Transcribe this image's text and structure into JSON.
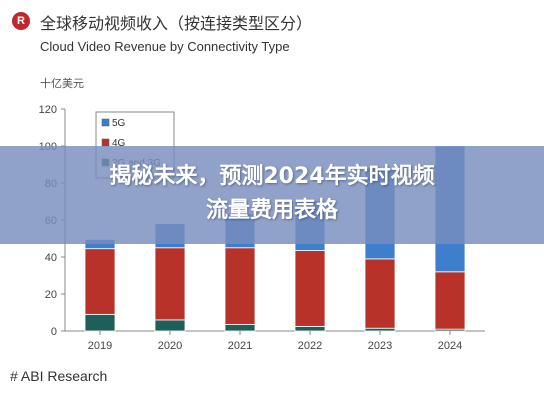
{
  "header": {
    "logo_letter": "R",
    "title_cn": "全球移动视频收入（按连接类型区分）",
    "title_en": "Cloud Video Revenue by Connectivity Type",
    "unit": "十亿美元"
  },
  "source": "# ABI Research",
  "banner": {
    "line1": "揭秘未来，预测2024年实时视频",
    "line2": "流量费用表格"
  },
  "chart_data": {
    "type": "bar",
    "stacked": true,
    "categories": [
      "2019",
      "2020",
      "2021",
      "2022",
      "2023",
      "2024"
    ],
    "series": [
      {
        "name": "2G and 3G",
        "color": "#1f5f5a",
        "values": [
          9,
          6,
          3.5,
          2.5,
          1.5,
          1
        ]
      },
      {
        "name": "4G",
        "color": "#b8322a",
        "values": [
          35.5,
          39,
          41.5,
          41,
          37.5,
          31
        ]
      },
      {
        "name": "5G",
        "color": "#3d7fcc",
        "values": [
          5,
          13,
          18.5,
          27,
          49,
          68
        ]
      }
    ],
    "ylim": [
      0,
      120
    ],
    "yticks": [
      0,
      20,
      40,
      60,
      80,
      100,
      120
    ],
    "grid": false,
    "legend_position": "top-left"
  }
}
